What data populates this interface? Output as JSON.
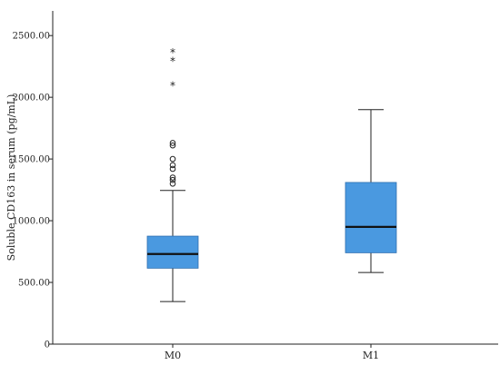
{
  "chart_data": {
    "type": "box",
    "ylabel": "Soluble CD163 in serum (pg/mL)",
    "xlabel": "",
    "ylim": [
      0,
      2700
    ],
    "yticks": [
      0,
      500,
      1000,
      1500,
      2000,
      2500
    ],
    "ytick_labels": [
      "0",
      "500.00",
      "1000.00",
      "1500.00",
      "2000.00",
      "2500.00"
    ],
    "categories": [
      "M0",
      "M1"
    ],
    "box_color": "#4a99e0",
    "series": [
      {
        "category": "M0",
        "whisker_low": 345,
        "q1": 615,
        "median": 730,
        "q3": 875,
        "whisker_high": 1245,
        "outliers_circle": [
          1300,
          1330,
          1350,
          1420,
          1450,
          1500,
          1610,
          1630
        ],
        "outliers_star": [
          2100,
          2300,
          2370
        ]
      },
      {
        "category": "M1",
        "whisker_low": 580,
        "q1": 740,
        "median": 950,
        "q3": 1310,
        "whisker_high": 1900,
        "outliers_circle": [],
        "outliers_star": []
      }
    ]
  }
}
